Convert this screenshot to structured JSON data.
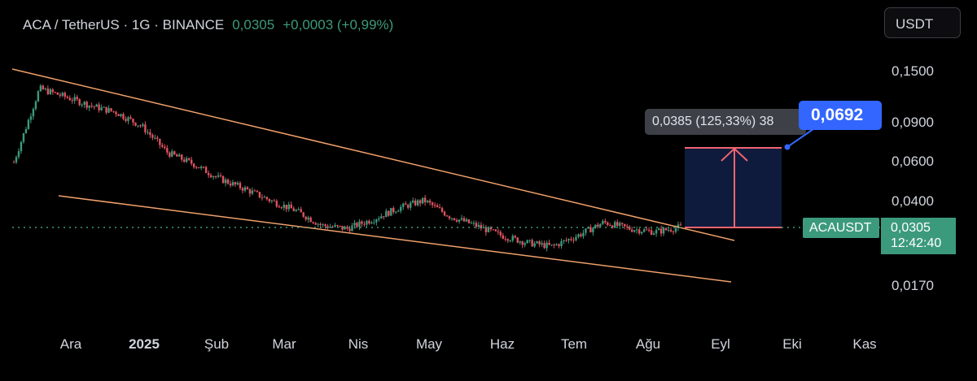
{
  "header": {
    "symbol": "ACA / TetherUS · 1G · BINANCE",
    "price": "0,0305",
    "change": "+0,0003 (+0,99%)"
  },
  "currency_button": {
    "label": "USDT"
  },
  "y_axis": {
    "ticks": [
      "0,1500",
      "0,0900",
      "0,0600",
      "0,0400",
      "0,0170"
    ]
  },
  "x_axis": {
    "ticks": [
      "Ara",
      "2025",
      "Şub",
      "Mar",
      "Nis",
      "May",
      "Haz",
      "Tem",
      "Ağu",
      "Eyl",
      "Eki",
      "Kas"
    ]
  },
  "current_price": {
    "symbol_tag": "ACAUSDT",
    "price": "0,0305",
    "countdown": "12:42:40"
  },
  "measure": {
    "tooltip": "0,0385 (125,33%) 38",
    "target": "0,0692"
  },
  "colors": {
    "up": "#3c9a7c",
    "down": "#e0525f",
    "wedge": "#f0a06a",
    "measure_box": "#0f1b3d",
    "measure_line": "#f0656f",
    "target": "#3366ff"
  },
  "chart_data": {
    "type": "candlestick",
    "symbol": "ACAUSDT",
    "scale": "log",
    "y_ticks": [
      0.15,
      0.09,
      0.06,
      0.04,
      0.017
    ],
    "x_ticks": [
      "Ara",
      "2025",
      "Şub",
      "Mar",
      "Nis",
      "May",
      "Haz",
      "Tem",
      "Ağu",
      "Eyl",
      "Eki",
      "Kas"
    ],
    "last_price": 0.0305,
    "change": 0.0003,
    "change_pct": 0.99,
    "target_price": 0.0692,
    "measured_move": 0.0385,
    "measured_pct": 125.33,
    "trend_close_approx": [
      0.059,
      0.125,
      0.115,
      0.105,
      0.098,
      0.085,
      0.065,
      0.058,
      0.05,
      0.045,
      0.04,
      0.036,
      0.031,
      0.03,
      0.033,
      0.037,
      0.04,
      0.034,
      0.031,
      0.028,
      0.026,
      0.025,
      0.028,
      0.032,
      0.03,
      0.029,
      0.0305
    ]
  }
}
